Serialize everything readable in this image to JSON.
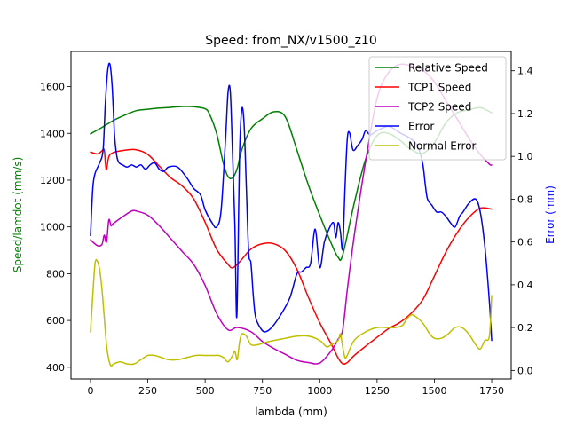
{
  "chart_data": {
    "type": "line",
    "title": "Speed: from_NX/v1500_z10",
    "xlabel": "lambda (mm)",
    "ylabel_left": "Speed/lamdot (mm/s)",
    "ylabel_right": "Error (mm)",
    "xlim": [
      -85,
      1835
    ],
    "ylim_left": [
      350,
      1750
    ],
    "ylim_right": [
      -0.04,
      1.49
    ],
    "xticks": [
      0,
      250,
      500,
      750,
      1000,
      1250,
      1500,
      1750
    ],
    "yticks_left": [
      400,
      600,
      800,
      1000,
      1200,
      1400,
      1600
    ],
    "yticks_right": [
      0.0,
      0.2,
      0.4,
      0.6,
      0.8,
      1.0,
      1.2,
      1.4
    ],
    "legend_position": "top-right",
    "colors": {
      "relative": "#008000",
      "tcp1": "#ff0000",
      "tcp2": "#bf00bf",
      "error": "#0000ff",
      "normal_error": "#bfbf00",
      "left_label": "#008000",
      "right_label": "#0000ff"
    },
    "series": [
      {
        "name": "Relative Speed",
        "axis": "left",
        "color": "#008000",
        "x": [
          0,
          50,
          100,
          150,
          200,
          250,
          300,
          350,
          400,
          450,
          500,
          520,
          550,
          580,
          600,
          620,
          640,
          660,
          700,
          750,
          800,
          850,
          900,
          950,
          1000,
          1050,
          1080,
          1100,
          1150,
          1200,
          1250,
          1300,
          1350,
          1400,
          1450,
          1500,
          1550,
          1600,
          1650,
          1700,
          1750
        ],
        "y": [
          1398,
          1425,
          1455,
          1478,
          1497,
          1503,
          1508,
          1511,
          1515,
          1514,
          1505,
          1480,
          1400,
          1270,
          1215,
          1210,
          1250,
          1330,
          1420,
          1462,
          1492,
          1470,
          1330,
          1180,
          1050,
          930,
          870,
          880,
          1100,
          1290,
          1390,
          1400,
          1370,
          1330,
          1315,
          1360,
          1445,
          1488,
          1500,
          1510,
          1488
        ]
      },
      {
        "name": "TCP1 Speed",
        "axis": "left",
        "color": "#ff0000",
        "x": [
          0,
          30,
          50,
          60,
          65,
          70,
          80,
          100,
          150,
          200,
          250,
          300,
          350,
          400,
          450,
          500,
          550,
          600,
          620,
          650,
          700,
          750,
          800,
          850,
          900,
          950,
          1000,
          1050,
          1080,
          1100,
          1120,
          1150,
          1200,
          1250,
          1300,
          1350,
          1400,
          1450,
          1500,
          1550,
          1600,
          1650,
          1700,
          1750
        ],
        "y": [
          1320,
          1312,
          1325,
          1330,
          1275,
          1245,
          1300,
          1318,
          1328,
          1330,
          1310,
          1260,
          1210,
          1175,
          1120,
          1020,
          905,
          840,
          825,
          850,
          905,
          928,
          928,
          898,
          820,
          700,
          590,
          500,
          440,
          415,
          420,
          450,
          490,
          528,
          565,
          592,
          632,
          690,
          790,
          892,
          976,
          1040,
          1080,
          1076
        ]
      },
      {
        "name": "TCP2 Speed",
        "axis": "left",
        "color": "#bf00bf",
        "x": [
          0,
          30,
          50,
          60,
          70,
          80,
          90,
          100,
          150,
          180,
          200,
          250,
          300,
          350,
          400,
          450,
          500,
          550,
          600,
          640,
          700,
          750,
          800,
          850,
          900,
          950,
          1000,
          1050,
          1080,
          1100,
          1120,
          1150,
          1200,
          1250,
          1300,
          1350,
          1400,
          1450,
          1500,
          1550,
          1600,
          1650,
          1700,
          1740,
          1750
        ],
        "y": [
          945,
          920,
          925,
          965,
          935,
          1030,
          1005,
          1015,
          1050,
          1068,
          1068,
          1050,
          1005,
          950,
          895,
          840,
          750,
          630,
          560,
          570,
          552,
          510,
          480,
          455,
          430,
          420,
          418,
          470,
          520,
          560,
          730,
          960,
          1280,
          1550,
          1660,
          1695,
          1688,
          1670,
          1620,
          1540,
          1460,
          1380,
          1310,
          1268,
          1265
        ]
      },
      {
        "name": "Error",
        "axis": "right",
        "color": "#0000ff",
        "x": [
          0,
          10,
          20,
          40,
          55,
          65,
          75,
          85,
          95,
          105,
          115,
          125,
          140,
          160,
          180,
          200,
          220,
          240,
          260,
          280,
          300,
          320,
          340,
          380,
          420,
          450,
          480,
          500,
          530,
          550,
          570,
          590,
          600,
          610,
          620,
          630,
          637,
          643,
          650,
          660,
          670,
          680,
          690,
          700,
          710,
          720,
          740,
          760,
          790,
          830,
          870,
          900,
          920,
          940,
          960,
          980,
          1000,
          1020,
          1040,
          1060,
          1070,
          1080,
          1090,
          1100,
          1110,
          1120,
          1130,
          1145,
          1165,
          1185,
          1200,
          1220,
          1250,
          1300,
          1350,
          1400,
          1430,
          1450,
          1460,
          1470,
          1490,
          1510,
          1530,
          1550,
          1570,
          1590,
          1610,
          1625,
          1650,
          1680,
          1700,
          1720,
          1740,
          1750
        ],
        "y": [
          0.63,
          0.85,
          0.92,
          0.97,
          1.03,
          1.25,
          1.4,
          1.43,
          1.32,
          1.1,
          1.0,
          0.97,
          0.96,
          0.95,
          0.96,
          0.95,
          0.96,
          0.94,
          0.96,
          0.97,
          0.94,
          0.93,
          0.95,
          0.95,
          0.9,
          0.85,
          0.82,
          0.75,
          0.69,
          0.67,
          0.75,
          1.1,
          1.3,
          1.3,
          1.0,
          0.67,
          0.25,
          0.5,
          1.0,
          1.22,
          1.15,
          0.85,
          0.55,
          0.5,
          0.35,
          0.25,
          0.2,
          0.18,
          0.2,
          0.26,
          0.34,
          0.45,
          0.46,
          0.48,
          0.5,
          0.66,
          0.48,
          0.6,
          0.66,
          0.69,
          0.62,
          0.69,
          0.65,
          0.57,
          0.85,
          1.08,
          1.11,
          1.03,
          1.05,
          1.08,
          1.12,
          1.1,
          1.12,
          1.14,
          1.11,
          1.08,
          1.04,
          0.96,
          0.87,
          0.8,
          0.77,
          0.74,
          0.74,
          0.72,
          0.69,
          0.67,
          0.72,
          0.74,
          0.78,
          0.8,
          0.74,
          0.58,
          0.32,
          0.14
        ]
      },
      {
        "name": "Normal Error",
        "axis": "right",
        "color": "#bfbf00",
        "x": [
          0,
          10,
          20,
          30,
          40,
          50,
          60,
          70,
          80,
          90,
          100,
          130,
          160,
          190,
          220,
          250,
          280,
          310,
          340,
          380,
          420,
          460,
          500,
          540,
          560,
          580,
          600,
          620,
          630,
          640,
          650,
          660,
          680,
          700,
          730,
          760,
          800,
          850,
          900,
          950,
          1000,
          1030,
          1050,
          1080,
          1090,
          1100,
          1110,
          1120,
          1150,
          1200,
          1250,
          1300,
          1330,
          1360,
          1380,
          1400,
          1420,
          1450,
          1480,
          1500,
          1530,
          1560,
          1590,
          1620,
          1650,
          1680,
          1700,
          1720,
          1740,
          1750
        ],
        "y": [
          0.18,
          0.35,
          0.5,
          0.51,
          0.47,
          0.38,
          0.25,
          0.12,
          0.05,
          0.02,
          0.03,
          0.04,
          0.03,
          0.03,
          0.05,
          0.07,
          0.07,
          0.06,
          0.05,
          0.05,
          0.06,
          0.07,
          0.07,
          0.07,
          0.07,
          0.06,
          0.04,
          0.07,
          0.09,
          0.05,
          0.13,
          0.17,
          0.16,
          0.12,
          0.12,
          0.13,
          0.14,
          0.15,
          0.16,
          0.16,
          0.14,
          0.11,
          0.12,
          0.14,
          0.17,
          0.11,
          0.06,
          0.07,
          0.14,
          0.18,
          0.2,
          0.2,
          0.2,
          0.21,
          0.24,
          0.26,
          0.25,
          0.22,
          0.17,
          0.15,
          0.15,
          0.17,
          0.2,
          0.2,
          0.17,
          0.12,
          0.1,
          0.14,
          0.16,
          0.35
        ]
      }
    ]
  }
}
